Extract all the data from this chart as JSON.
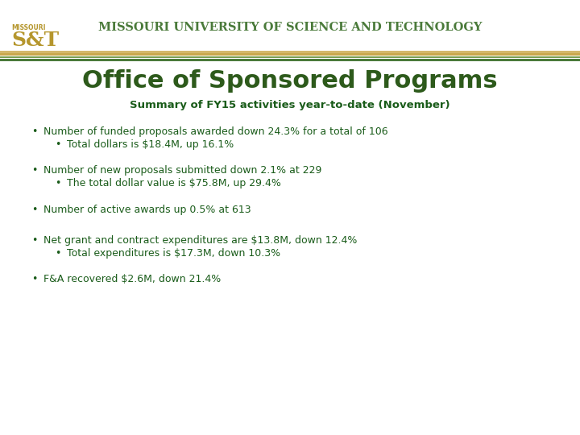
{
  "title": "Office of Sponsored Programs",
  "subtitle": "Summary of FY15 activities year-to-date (November)",
  "header_bg": "#ffffff",
  "header_line_colors": [
    "#c8b96e",
    "#a89550",
    "#6b8e4e",
    "#4a7a3a"
  ],
  "univ_name": "Missouri University of Science and Technology",
  "univ_color": "#4a7a3a",
  "title_color": "#2d5a1b",
  "subtitle_color": "#1a5c1a",
  "bullet_color": "#1a5c1a",
  "bullet1_main": "Number of funded proposals awarded down 24.3% for a total of 106",
  "bullet1_sub": "Total dollars is $18.4M, up 16.1%",
  "bullet2_main": "Number of new proposals submitted down 2.1% at 229",
  "bullet2_sub": "The total dollar value is $75.8M, up 29.4%",
  "bullet3_main": "Number of active awards up 0.5% at 613",
  "bullet4_main": "Net grant and contract expenditures are $13.8M, down 12.4%",
  "bullet4_sub": "Total expenditures is $17.3M, down 10.3%",
  "bullet5_main": "F&A recovered $2.6M, down 21.4%",
  "bg_color": "#ffffff",
  "logo_text_missouri": "MISSOURI",
  "logo_text_st": "S&T",
  "logo_color_gold": "#b5962d",
  "logo_color_green": "#4a7a3a"
}
